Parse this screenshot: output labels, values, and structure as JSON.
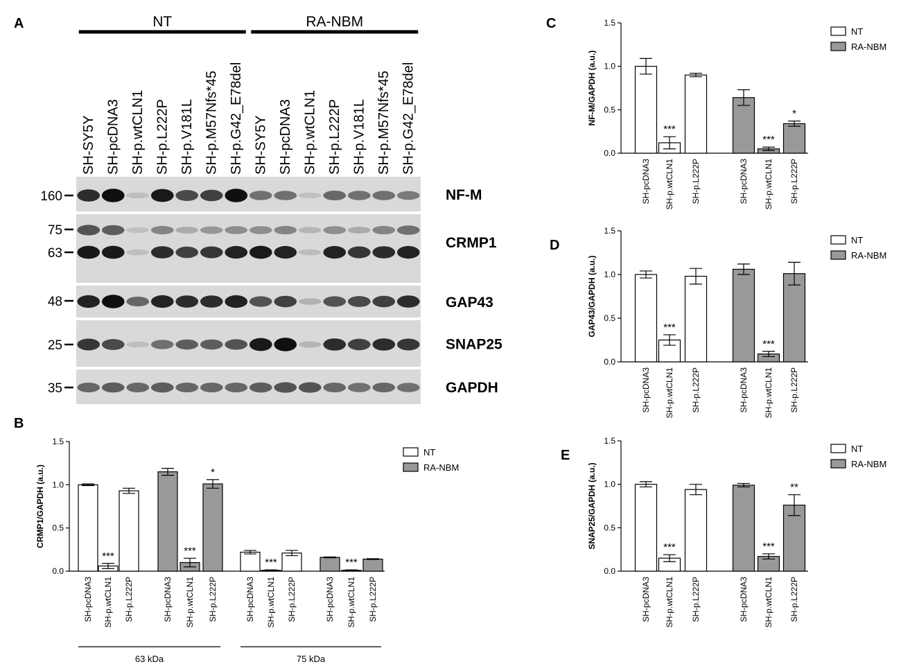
{
  "panel_letters": {
    "A": "A",
    "B": "B",
    "C": "C",
    "D": "D",
    "E": "E"
  },
  "blot": {
    "groups": [
      "NT",
      "RA-NBM"
    ],
    "lanes": [
      "SH-SY5Y",
      "SH-pcDNA3",
      "SH-p.wtCLN1",
      "SH-p.L222P",
      "SH-p.V181L",
      "SH-p.M57Nfs*45",
      "SH-p.G42_E78del",
      "SH-SY5Y",
      "SH-pcDNA3",
      "SH-p.wtCLN1",
      "SH-p.L222P",
      "SH-p.V181L",
      "SH-p.M57Nfs*45",
      "SH-p.G42_E78del"
    ],
    "strips": [
      {
        "label": "NF-M",
        "markers": [
          "160"
        ],
        "bands": [
          [
            0.8,
            0.95,
            0.05,
            0.9,
            0.65,
            0.7,
            0.95,
            0.45,
            0.45,
            0.04,
            0.5,
            0.45,
            0.45,
            0.4
          ]
        ]
      },
      {
        "label": "CRMP1",
        "markers": [
          "75",
          "63"
        ],
        "bands": [
          [
            0.6,
            0.55,
            0.04,
            0.35,
            0.15,
            0.25,
            0.3,
            0.3,
            0.35,
            0.1,
            0.3,
            0.15,
            0.35,
            0.45
          ],
          [
            0.9,
            0.9,
            0.05,
            0.8,
            0.7,
            0.75,
            0.85,
            0.9,
            0.85,
            0.06,
            0.85,
            0.75,
            0.8,
            0.85
          ]
        ]
      },
      {
        "label": "GAP43",
        "markers": [
          "48"
        ],
        "bands": [
          [
            0.85,
            0.95,
            0.5,
            0.85,
            0.8,
            0.8,
            0.85,
            0.6,
            0.7,
            0.12,
            0.6,
            0.65,
            0.7,
            0.8
          ]
        ]
      },
      {
        "label": "SNAP25",
        "markers": [
          "25"
        ],
        "bands": [
          [
            0.75,
            0.65,
            0.05,
            0.45,
            0.55,
            0.55,
            0.6,
            0.9,
            0.95,
            0.1,
            0.8,
            0.7,
            0.8,
            0.75
          ]
        ]
      },
      {
        "label": "GAPDH",
        "markers": [
          "35"
        ],
        "bands": [
          [
            0.5,
            0.55,
            0.5,
            0.55,
            0.5,
            0.5,
            0.5,
            0.55,
            0.6,
            0.6,
            0.5,
            0.45,
            0.5,
            0.45
          ]
        ]
      }
    ]
  },
  "chart_data": [
    {
      "panel": "B",
      "type": "bar",
      "ylabel": "CRMP1/GAPDH (a.u.)",
      "ylim": [
        0,
        1.5
      ],
      "yticks": [
        "0.0",
        "0.5",
        "1.0",
        "1.5"
      ],
      "legend": [
        "NT",
        "RA-NBM"
      ],
      "legend_position": "top-right",
      "bars": [
        {
          "category": "SH-pcDNA3",
          "group": "NT",
          "value": 1.0,
          "error": 0.01,
          "sig": ""
        },
        {
          "category": "SH-p.wtCLN1",
          "group": "NT",
          "value": 0.06,
          "error": 0.03,
          "sig": "***"
        },
        {
          "category": "SH-p.L222P",
          "group": "NT",
          "value": 0.93,
          "error": 0.03,
          "sig": ""
        },
        {
          "category": "SH-pcDNA3",
          "group": "RA-NBM",
          "value": 1.15,
          "error": 0.04,
          "sig": ""
        },
        {
          "category": "SH-p.wtCLN1",
          "group": "RA-NBM",
          "value": 0.1,
          "error": 0.05,
          "sig": "***"
        },
        {
          "category": "SH-p.L222P",
          "group": "RA-NBM",
          "value": 1.01,
          "error": 0.05,
          "sig": "*"
        },
        {
          "category": "SH-pcDNA3",
          "group": "NT",
          "value": 0.22,
          "error": 0.02,
          "sig": ""
        },
        {
          "category": "SH-p.wtCLN1",
          "group": "NT",
          "value": 0.01,
          "error": 0.005,
          "sig": "***"
        },
        {
          "category": "SH-p.L222P",
          "group": "NT",
          "value": 0.21,
          "error": 0.03,
          "sig": ""
        },
        {
          "category": "SH-pcDNA3",
          "group": "RA-NBM",
          "value": 0.16,
          "error": 0.005,
          "sig": ""
        },
        {
          "category": "SH-p.wtCLN1",
          "group": "RA-NBM",
          "value": 0.01,
          "error": 0.005,
          "sig": "***"
        },
        {
          "category": "SH-p.L222P",
          "group": "RA-NBM",
          "value": 0.14,
          "error": 0.005,
          "sig": ""
        }
      ],
      "bracket_groups": [
        {
          "label": "63 kDa"
        },
        {
          "label": "75 kDa"
        }
      ]
    },
    {
      "panel": "C",
      "type": "bar",
      "ylabel": "NF-M/GAPDH (a.u.)",
      "ylim": [
        0,
        1.5
      ],
      "yticks": [
        "0.0",
        "0.5",
        "1.0",
        "1.5"
      ],
      "legend": [
        "NT",
        "RA-NBM"
      ],
      "legend_position": "top-right",
      "bars": [
        {
          "category": "SH-pcDNA3",
          "group": "NT",
          "value": 1.0,
          "error": 0.09,
          "sig": ""
        },
        {
          "category": "SH-p.wtCLN1",
          "group": "NT",
          "value": 0.12,
          "error": 0.07,
          "sig": "***"
        },
        {
          "category": "SH-p.L222P",
          "group": "NT",
          "value": 0.9,
          "error": 0.02,
          "sig": ""
        },
        {
          "category": "SH-pcDNA3",
          "group": "RA-NBM",
          "value": 0.64,
          "error": 0.09,
          "sig": ""
        },
        {
          "category": "SH-p.wtCLN1",
          "group": "RA-NBM",
          "value": 0.05,
          "error": 0.02,
          "sig": "***"
        },
        {
          "category": "SH-p.L222P",
          "group": "RA-NBM",
          "value": 0.34,
          "error": 0.03,
          "sig": "*"
        }
      ]
    },
    {
      "panel": "D",
      "type": "bar",
      "ylabel": "GAP43/GAPDH (a.u.)",
      "ylim": [
        0,
        1.5
      ],
      "yticks": [
        "0.0",
        "0.5",
        "1.0",
        "1.5"
      ],
      "legend": [
        "NT",
        "RA-NBM"
      ],
      "legend_position": "top-right",
      "bars": [
        {
          "category": "SH-pcDNA3",
          "group": "NT",
          "value": 1.0,
          "error": 0.04,
          "sig": ""
        },
        {
          "category": "SH-p.wtCLN1",
          "group": "NT",
          "value": 0.25,
          "error": 0.06,
          "sig": "***"
        },
        {
          "category": "SH-p.L222P",
          "group": "NT",
          "value": 0.98,
          "error": 0.09,
          "sig": ""
        },
        {
          "category": "SH-pcDNA3",
          "group": "RA-NBM",
          "value": 1.06,
          "error": 0.06,
          "sig": ""
        },
        {
          "category": "SH-p.wtCLN1",
          "group": "RA-NBM",
          "value": 0.09,
          "error": 0.03,
          "sig": "***"
        },
        {
          "category": "SH-p.L222P",
          "group": "RA-NBM",
          "value": 1.01,
          "error": 0.13,
          "sig": ""
        }
      ]
    },
    {
      "panel": "E",
      "type": "bar",
      "ylabel": "SNAP25/GAPDH (a.u.)",
      "ylim": [
        0,
        1.5
      ],
      "yticks": [
        "0.0",
        "0.5",
        "1.0",
        "1.5"
      ],
      "legend": [
        "NT",
        "RA-NBM"
      ],
      "legend_position": "top-right",
      "bars": [
        {
          "category": "SH-pcDNA3",
          "group": "NT",
          "value": 1.0,
          "error": 0.03,
          "sig": ""
        },
        {
          "category": "SH-p.wtCLN1",
          "group": "NT",
          "value": 0.15,
          "error": 0.04,
          "sig": "***"
        },
        {
          "category": "SH-p.L222P",
          "group": "NT",
          "value": 0.94,
          "error": 0.06,
          "sig": ""
        },
        {
          "category": "SH-pcDNA3",
          "group": "RA-NBM",
          "value": 0.99,
          "error": 0.02,
          "sig": ""
        },
        {
          "category": "SH-p.wtCLN1",
          "group": "RA-NBM",
          "value": 0.17,
          "error": 0.03,
          "sig": "***"
        },
        {
          "category": "SH-p.L222P",
          "group": "RA-NBM",
          "value": 0.76,
          "error": 0.12,
          "sig": "**"
        }
      ]
    }
  ],
  "colors": {
    "NT": "#ffffff",
    "RA-NBM": "#999999",
    "stroke": "#000000",
    "blot_bg": "#d9d9d9"
  }
}
